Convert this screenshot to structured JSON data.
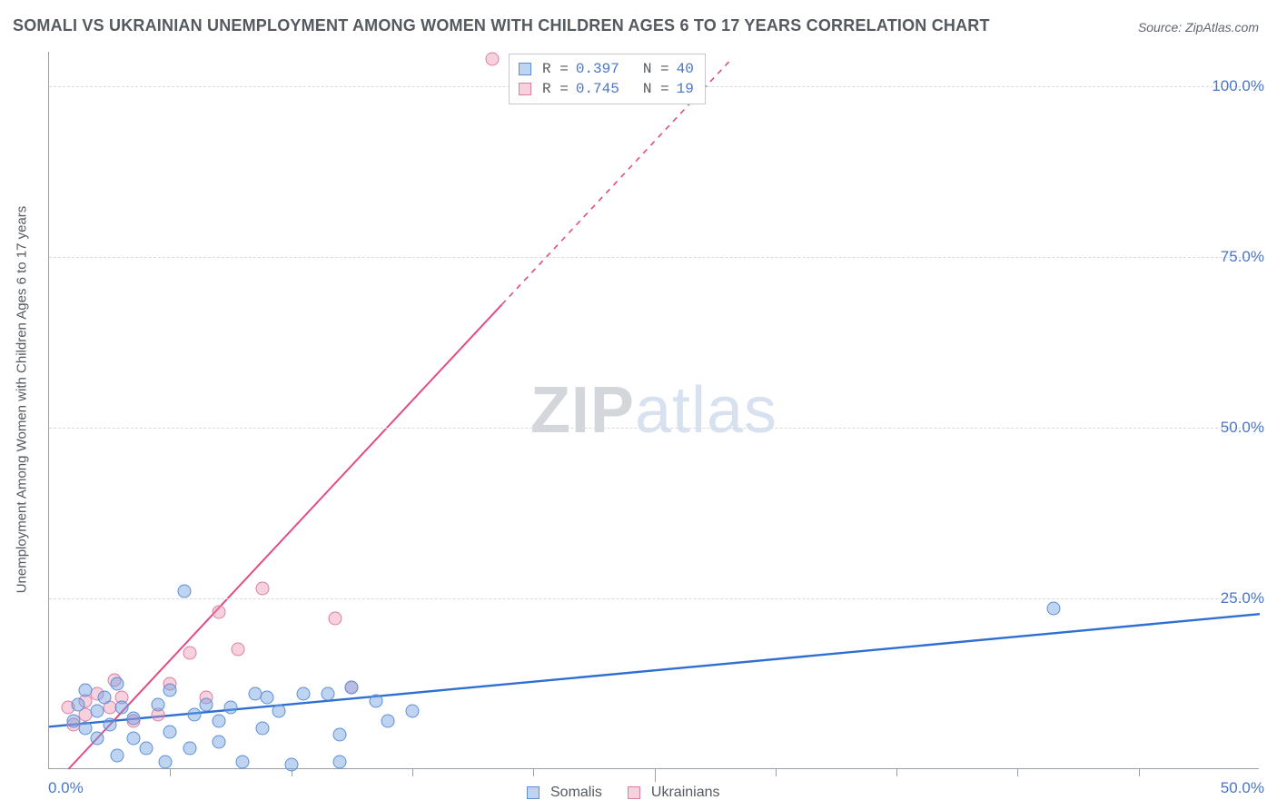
{
  "title": "SOMALI VS UKRAINIAN UNEMPLOYMENT AMONG WOMEN WITH CHILDREN AGES 6 TO 17 YEARS CORRELATION CHART",
  "source": "Source: ZipAtlas.com",
  "watermark": {
    "part1": "ZIP",
    "part2": "atlas"
  },
  "chart": {
    "type": "scatter",
    "background": "#ffffff",
    "grid_color": "#d8dadd",
    "axis_color": "#9aa0a8",
    "xlim": [
      0,
      50
    ],
    "ylim": [
      0,
      105
    ],
    "y_axis_label": "Unemployment Among Women with Children Ages 6 to 17 years",
    "x_start_label": "0.0%",
    "x_end_label": "50.0%",
    "y_ticks": [
      {
        "value": 25,
        "label": "25.0%"
      },
      {
        "value": 50,
        "label": "50.0%"
      },
      {
        "value": 75,
        "label": "75.0%"
      },
      {
        "value": 100,
        "label": "100.0%"
      }
    ],
    "x_minor_ticks": [
      5,
      10,
      15,
      20,
      25,
      30,
      35,
      40,
      45
    ],
    "x_major_ticks": [
      25
    ],
    "stats": [
      {
        "series": "somalis",
        "R_label": "R =",
        "R": "0.397",
        "N_label": "N =",
        "N": "40"
      },
      {
        "series": "ukrainians",
        "R_label": "R =",
        "R": "0.745",
        "N_label": "N =",
        "N": " 19"
      }
    ],
    "legend": [
      {
        "key": "somalis",
        "label": "Somalis"
      },
      {
        "key": "ukrainians",
        "label": "Ukrainians"
      }
    ],
    "series": {
      "somalis": {
        "color_fill": "rgba(110,160,225,0.45)",
        "color_stroke": "#5b8fd6",
        "line_color": "#2e6fd1",
        "line_width": 2.4,
        "trend": {
          "x1": 0,
          "y1": 6.2,
          "x2": 50,
          "y2": 22.7
        },
        "points": [
          [
            1.0,
            7.0
          ],
          [
            1.2,
            9.5
          ],
          [
            1.5,
            6.0
          ],
          [
            1.5,
            11.5
          ],
          [
            2.0,
            4.5
          ],
          [
            2.0,
            8.5
          ],
          [
            2.3,
            10.5
          ],
          [
            2.5,
            6.5
          ],
          [
            2.8,
            12.5
          ],
          [
            2.8,
            2.0
          ],
          [
            3.0,
            9.0
          ],
          [
            3.5,
            4.5
          ],
          [
            3.5,
            7.5
          ],
          [
            4.0,
            3.0
          ],
          [
            4.5,
            9.5
          ],
          [
            4.8,
            1.0
          ],
          [
            5.0,
            11.5
          ],
          [
            5.0,
            5.5
          ],
          [
            5.6,
            26.0
          ],
          [
            5.8,
            3.0
          ],
          [
            6.0,
            8.0
          ],
          [
            6.5,
            9.5
          ],
          [
            7.0,
            4.0
          ],
          [
            7.0,
            7.0
          ],
          [
            7.5,
            9.0
          ],
          [
            8.0,
            1.0
          ],
          [
            8.5,
            11.0
          ],
          [
            8.8,
            6.0
          ],
          [
            9.0,
            10.5
          ],
          [
            9.5,
            8.5
          ],
          [
            10.0,
            0.7
          ],
          [
            10.5,
            11.0
          ],
          [
            11.5,
            11.0
          ],
          [
            12.0,
            5.0
          ],
          [
            12.0,
            1.0
          ],
          [
            12.5,
            12.0
          ],
          [
            13.5,
            10.0
          ],
          [
            14.0,
            7.0
          ],
          [
            15.0,
            8.5
          ],
          [
            41.5,
            23.5
          ]
        ]
      },
      "ukrainians": {
        "color_fill": "rgba(235,140,170,0.40)",
        "color_stroke": "#da7fa1",
        "line_color": "#e44a86",
        "line_width": 2.0,
        "trend_solid": {
          "x1": 0.8,
          "y1": 0,
          "x2": 18.7,
          "y2": 68.0
        },
        "trend_dash": {
          "x1": 18.7,
          "y1": 68.0,
          "x2": 28.2,
          "y2": 104.0
        },
        "points": [
          [
            0.8,
            9.0
          ],
          [
            1.0,
            6.5
          ],
          [
            1.5,
            10.0
          ],
          [
            1.5,
            8.0
          ],
          [
            2.0,
            11.0
          ],
          [
            2.5,
            9.0
          ],
          [
            2.7,
            13.0
          ],
          [
            3.0,
            10.5
          ],
          [
            3.5,
            7.0
          ],
          [
            4.5,
            8.0
          ],
          [
            5.0,
            12.5
          ],
          [
            5.8,
            17.0
          ],
          [
            6.5,
            10.5
          ],
          [
            7.0,
            23.0
          ],
          [
            7.8,
            17.5
          ],
          [
            8.8,
            26.5
          ],
          [
            11.8,
            22.0
          ],
          [
            12.5,
            12.0
          ],
          [
            18.3,
            104.0
          ]
        ]
      }
    }
  }
}
